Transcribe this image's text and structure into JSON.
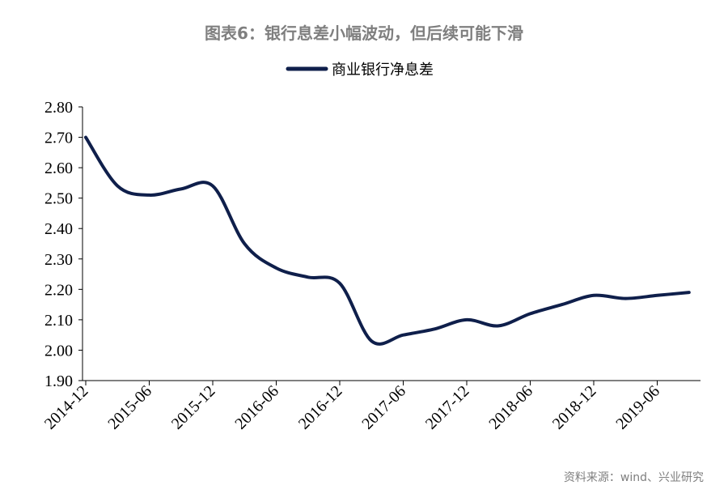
{
  "title": "图表6：银行息差小幅波动，但后续可能下滑",
  "source": "资料来源：wind、兴业研究",
  "colors": {
    "line": "#0f1f4b",
    "title": "#7f7f7f",
    "axis": "#000000",
    "source": "#7f7f7f"
  },
  "chart_data": {
    "type": "line",
    "x_tick_labels": [
      "2014-12",
      "2015-06",
      "2015-12",
      "2016-06",
      "2016-12",
      "2017-06",
      "2017-12",
      "2018-06",
      "2018-12",
      "2019-06"
    ],
    "y_tick_labels": [
      "1.90",
      "2.00",
      "2.10",
      "2.20",
      "2.30",
      "2.40",
      "2.50",
      "2.60",
      "2.70",
      "2.80"
    ],
    "ylim": [
      1.9,
      2.8
    ],
    "grid": false,
    "legend_position": "top-center",
    "series": [
      {
        "name": "商业银行净息差",
        "x": [
          "2014-12",
          "2015-03",
          "2015-06",
          "2015-09",
          "2015-12",
          "2016-03",
          "2016-06",
          "2016-09",
          "2016-12",
          "2017-03",
          "2017-06",
          "2017-09",
          "2017-12",
          "2018-03",
          "2018-06",
          "2018-09",
          "2018-12",
          "2019-03",
          "2019-06",
          "2019-09"
        ],
        "values": [
          2.7,
          2.54,
          2.51,
          2.53,
          2.54,
          2.35,
          2.27,
          2.24,
          2.22,
          2.03,
          2.05,
          2.07,
          2.1,
          2.08,
          2.12,
          2.15,
          2.18,
          2.17,
          2.18,
          2.19
        ]
      }
    ]
  }
}
